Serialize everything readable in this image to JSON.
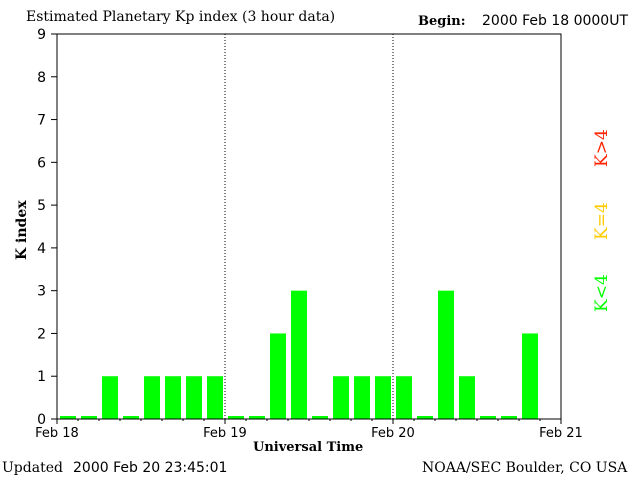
{
  "header": {
    "title": "Estimated Planetary Kp index (3 hour data)",
    "begin_label": "Begin:",
    "begin_value": "2000 Feb 18 0000UT"
  },
  "footer": {
    "updated_label": "Updated",
    "updated_value": "2000 Feb 20 23:45:01",
    "source": "NOAA/SEC Boulder, CO USA"
  },
  "legend": {
    "items": [
      {
        "label": "K<4",
        "color": "#00ff00"
      },
      {
        "label": "K=4",
        "color": "#ffcc00"
      },
      {
        "label": "K>4",
        "color": "#ff2200"
      }
    ]
  },
  "colors": {
    "bar_low": "#00ff00",
    "bar_eq": "#ffcc00",
    "bar_high": "#ff2200",
    "axis": "#000000"
  },
  "chart_data": {
    "type": "bar",
    "title": "Estimated Planetary Kp index (3 hour data)",
    "xlabel": "Universal Time",
    "ylabel": "K index",
    "ylim": [
      0,
      9
    ],
    "yticks": [
      "0",
      "1",
      "2",
      "3",
      "4",
      "5",
      "6",
      "7",
      "8",
      "9"
    ],
    "xticks": [
      "Feb 18",
      "Feb 19",
      "Feb 20",
      "Feb 21"
    ],
    "day_dividers": [
      "Feb 19",
      "Feb 20"
    ],
    "interval_hours": 3,
    "values": [
      0,
      0,
      1,
      0,
      1,
      1,
      1,
      1,
      0,
      0,
      2,
      3,
      0,
      1,
      1,
      1,
      1,
      0,
      3,
      1,
      0,
      0,
      2
    ]
  }
}
